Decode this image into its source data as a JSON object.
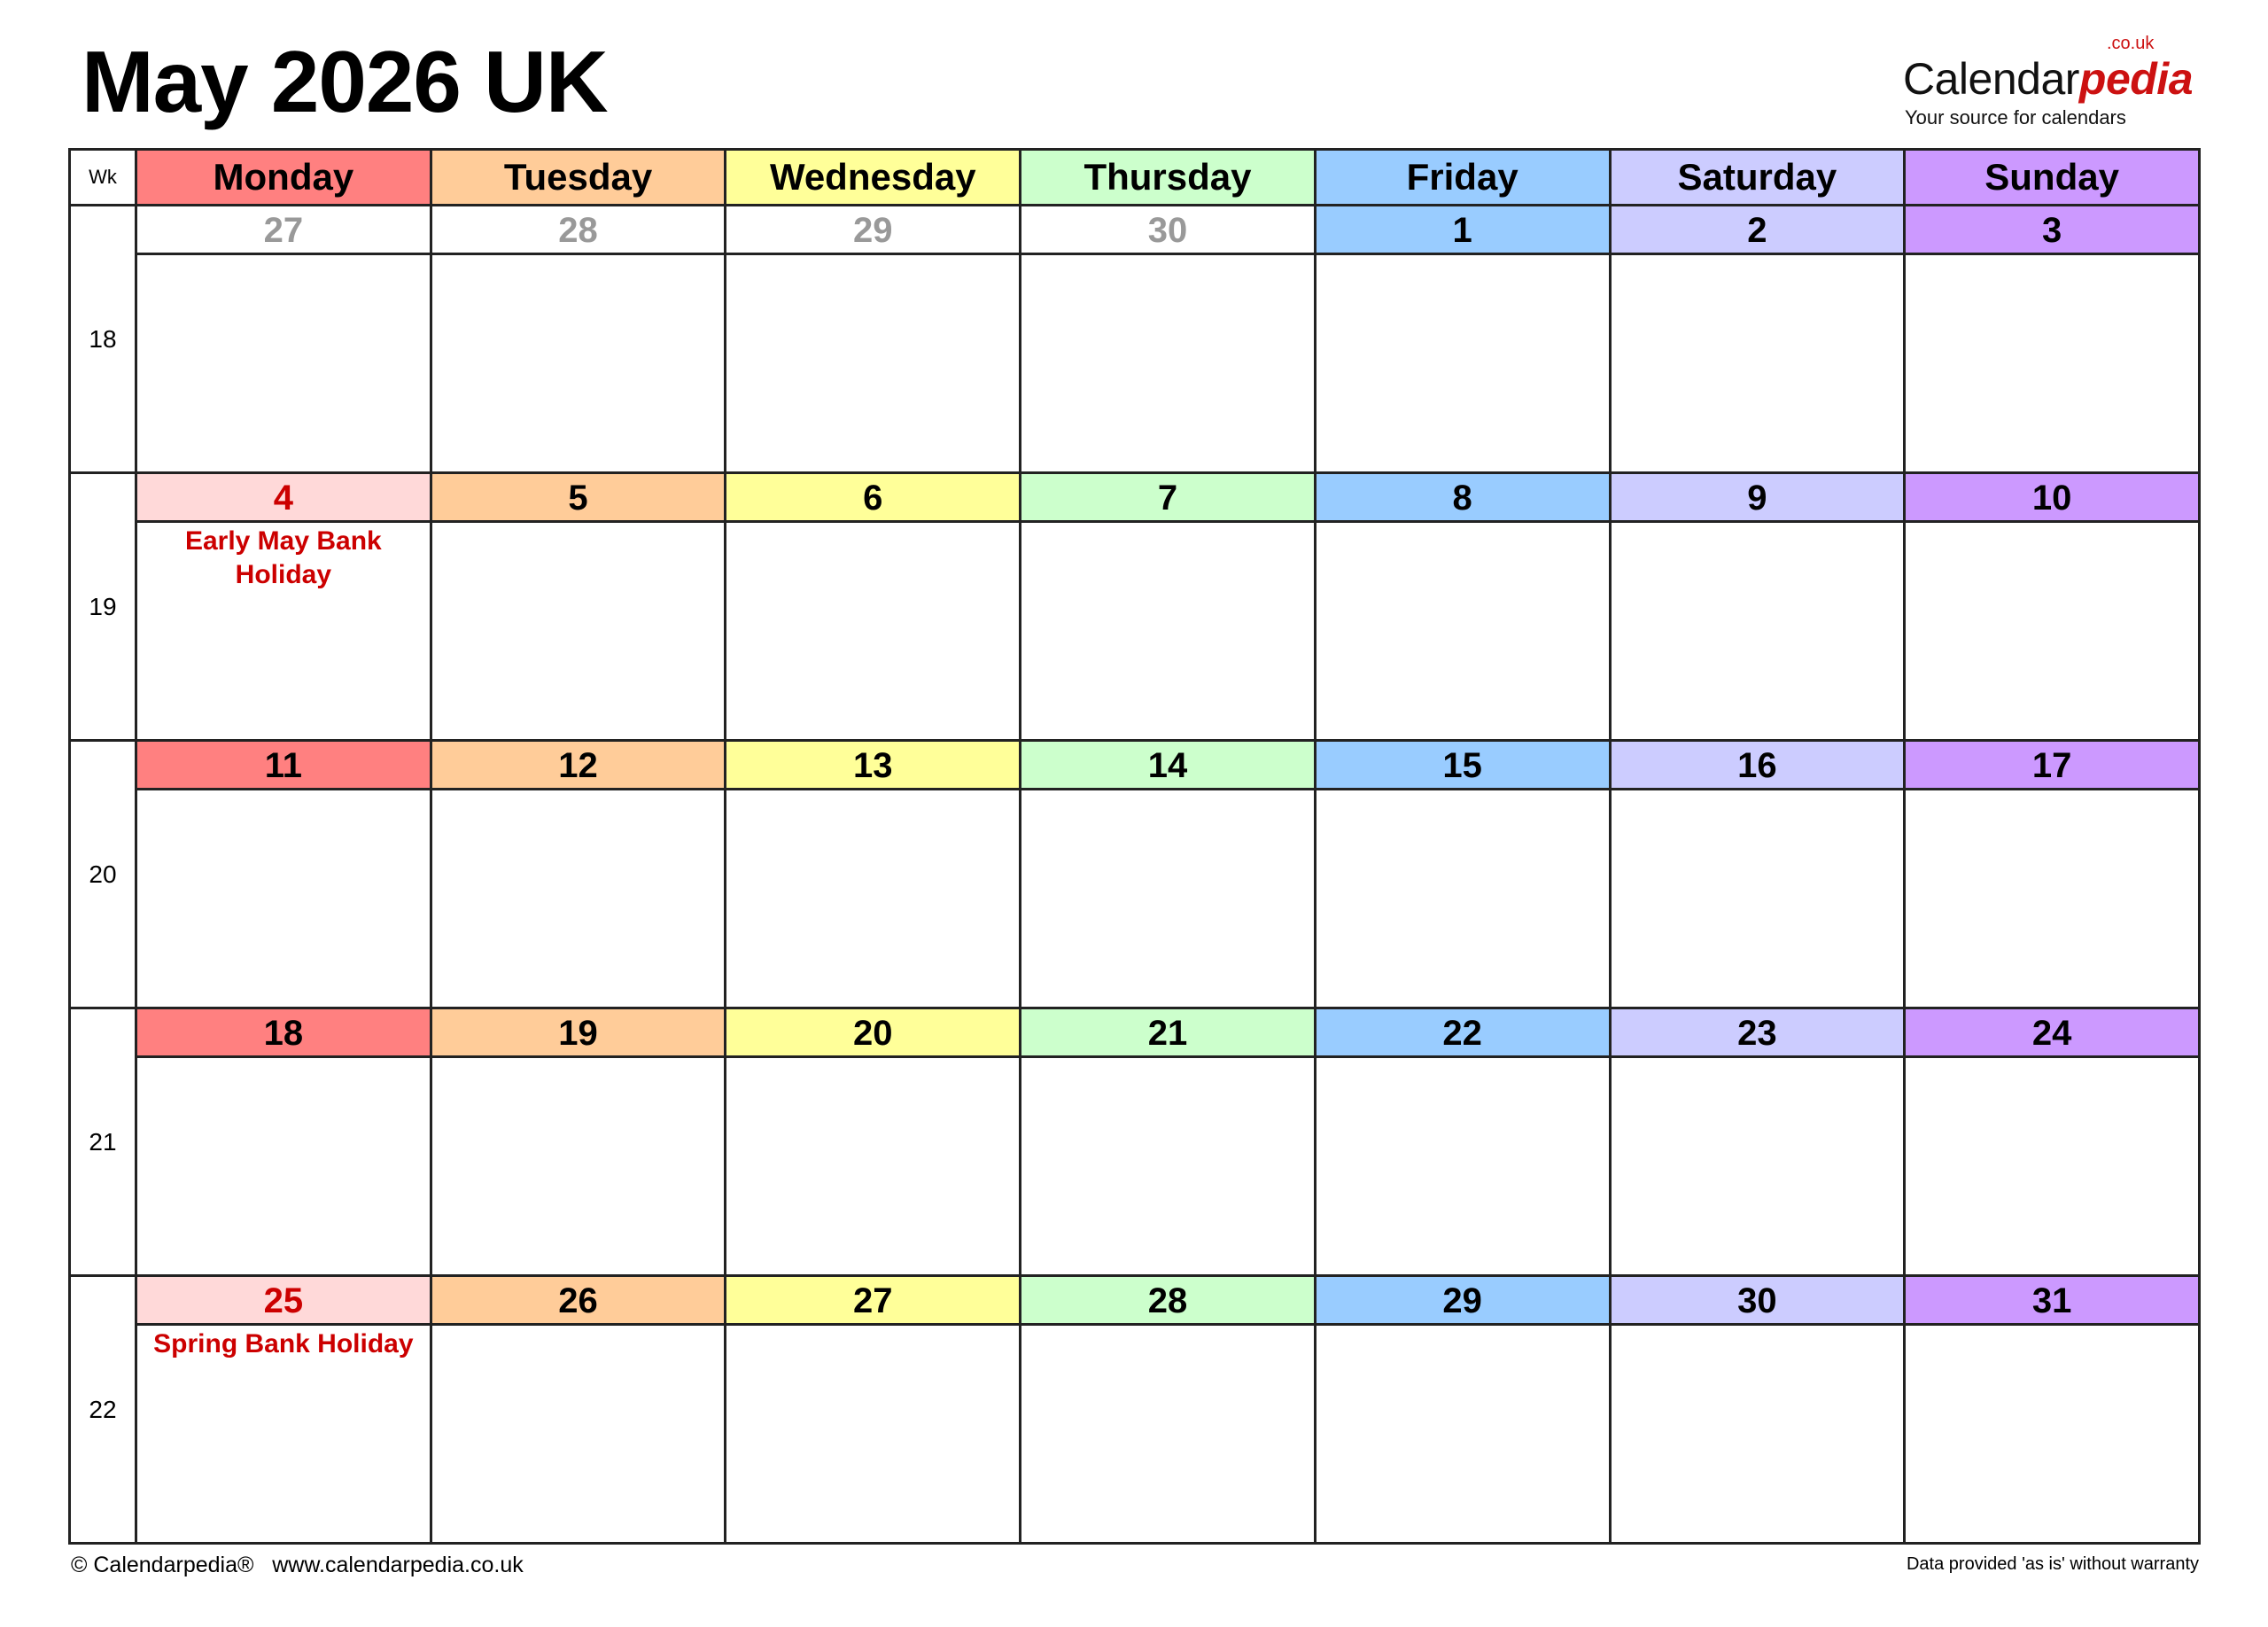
{
  "title": "May 2026 UK",
  "logo": {
    "main": "Calendar",
    "accent": "pedia",
    "suffix": ".co.uk",
    "tagline": "Your source for calendars"
  },
  "header": {
    "wk_label": "Wk",
    "days": [
      {
        "label": "Monday",
        "color": "#FF8080"
      },
      {
        "label": "Tuesday",
        "color": "#FFCC99"
      },
      {
        "label": "Wednesday",
        "color": "#FFFF99"
      },
      {
        "label": "Thursday",
        "color": "#CCFFCC"
      },
      {
        "label": "Friday",
        "color": "#99CCFF"
      },
      {
        "label": "Saturday",
        "color": "#CCCCFF"
      },
      {
        "label": "Sunday",
        "color": "#CC99FF"
      }
    ]
  },
  "colors": {
    "holiday_bg": "#FFD9D9",
    "holiday_text": "#CC0000",
    "muted_text": "#999999"
  },
  "weeks": [
    {
      "week": "18",
      "days": [
        {
          "date": "27",
          "muted": true
        },
        {
          "date": "28",
          "muted": true
        },
        {
          "date": "29",
          "muted": true
        },
        {
          "date": "30",
          "muted": true
        },
        {
          "date": "1"
        },
        {
          "date": "2"
        },
        {
          "date": "3"
        }
      ]
    },
    {
      "week": "19",
      "days": [
        {
          "date": "4",
          "holiday": true,
          "event": "Early May Bank Holiday"
        },
        {
          "date": "5"
        },
        {
          "date": "6"
        },
        {
          "date": "7"
        },
        {
          "date": "8"
        },
        {
          "date": "9"
        },
        {
          "date": "10"
        }
      ]
    },
    {
      "week": "20",
      "days": [
        {
          "date": "11"
        },
        {
          "date": "12"
        },
        {
          "date": "13"
        },
        {
          "date": "14"
        },
        {
          "date": "15"
        },
        {
          "date": "16"
        },
        {
          "date": "17"
        }
      ]
    },
    {
      "week": "21",
      "days": [
        {
          "date": "18"
        },
        {
          "date": "19"
        },
        {
          "date": "20"
        },
        {
          "date": "21"
        },
        {
          "date": "22"
        },
        {
          "date": "23"
        },
        {
          "date": "24"
        }
      ]
    },
    {
      "week": "22",
      "days": [
        {
          "date": "25",
          "holiday": true,
          "event": "Spring Bank Holiday"
        },
        {
          "date": "26"
        },
        {
          "date": "27"
        },
        {
          "date": "28"
        },
        {
          "date": "29"
        },
        {
          "date": "30"
        },
        {
          "date": "31"
        }
      ]
    }
  ],
  "footer": {
    "left": "© Calendarpedia®   www.calendarpedia.co.uk",
    "right": "Data provided 'as is' without warranty"
  }
}
